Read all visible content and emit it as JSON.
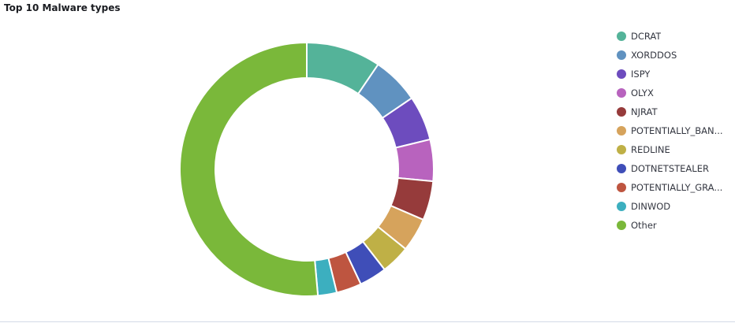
{
  "panel": {
    "title": "Top 10 Malware types"
  },
  "chart_data": {
    "type": "pie",
    "style": "donut",
    "title": "Top 10 Malware types",
    "legend_position": "right",
    "categories": [
      "DCRAT",
      "XORDDOS",
      "ISPY",
      "OLYX",
      "NJRAT",
      "POTENTIALLY_BAN...",
      "REDLINE",
      "DOTNETSTEALER",
      "POTENTIALLY_GRA...",
      "DINWOD",
      "Other"
    ],
    "values": [
      9.5,
      6.0,
      5.7,
      5.3,
      5.0,
      4.3,
      3.7,
      3.5,
      3.2,
      2.4,
      51.4
    ],
    "colors": [
      "#54B399",
      "#6092C0",
      "#6D4CBE",
      "#B863BE",
      "#963B3B",
      "#D6A35C",
      "#BFB046",
      "#3F4EB8",
      "#BE5540",
      "#3CAFBF",
      "#7AB83A"
    ]
  }
}
